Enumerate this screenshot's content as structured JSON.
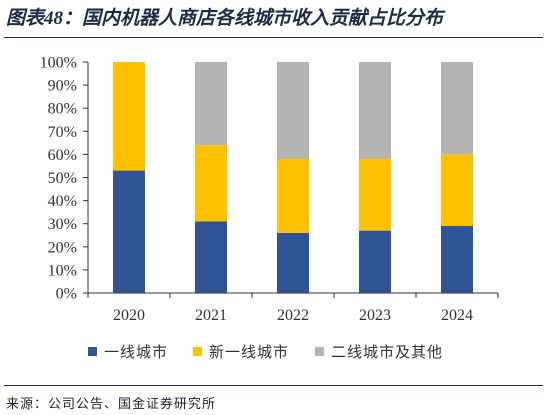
{
  "figure": {
    "title": "图表48：国内机器人商店各线城市收入贡献占比分布",
    "source": "来源：公司公告、国金证券研究所"
  },
  "chart_data": {
    "type": "bar",
    "stacked": true,
    "categories": [
      "2020",
      "2021",
      "2022",
      "2023",
      "2024"
    ],
    "series": [
      {
        "name": "一线城市",
        "color": "#2f5597",
        "values": [
          53,
          31,
          26,
          27,
          29
        ]
      },
      {
        "name": "新一线城市",
        "color": "#ffc000",
        "values": [
          47,
          33,
          32,
          31,
          31
        ]
      },
      {
        "name": "二线城市及其他",
        "color": "#b4b4b4",
        "values": [
          0,
          36,
          42,
          42,
          40
        ]
      }
    ],
    "ylim": [
      0,
      100
    ],
    "yticks": [
      "0%",
      "10%",
      "20%",
      "30%",
      "40%",
      "50%",
      "60%",
      "70%",
      "80%",
      "90%",
      "100%"
    ],
    "grid": false,
    "legend_position": "bottom"
  }
}
